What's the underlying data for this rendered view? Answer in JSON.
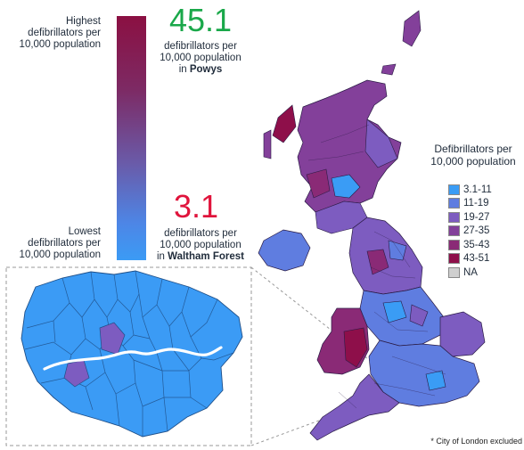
{
  "scale": {
    "high_label": "Highest\ndefibrillators per\n10,000 population",
    "low_label": "Lowest\ndefibrillators per\n10,000 population"
  },
  "highest": {
    "value": "45.1",
    "desc": "defibrillators per\n10,000 population",
    "prefix": "in ",
    "place": "Powys",
    "color": "#1aa84a"
  },
  "lowest": {
    "value": "3.1",
    "desc": "defibrillators per\n10,000 population",
    "prefix": "in ",
    "place": "Waltham Forest",
    "color": "#e0143c"
  },
  "legend": {
    "title": "Defibrillators per\n10,000 population",
    "items": [
      {
        "label": "3.1-11",
        "color": "#3a9cf5"
      },
      {
        "label": "11-19",
        "color": "#5f7de0"
      },
      {
        "label": "19-27",
        "color": "#7d5cc0"
      },
      {
        "label": "27-35",
        "color": "#83409a"
      },
      {
        "label": "35-43",
        "color": "#8a2a76"
      },
      {
        "label": "43-51",
        "color": "#8e0f4a"
      },
      {
        "label": "NA",
        "color": "#cfcfcf"
      }
    ]
  },
  "footnote": "* City of London excluded"
}
